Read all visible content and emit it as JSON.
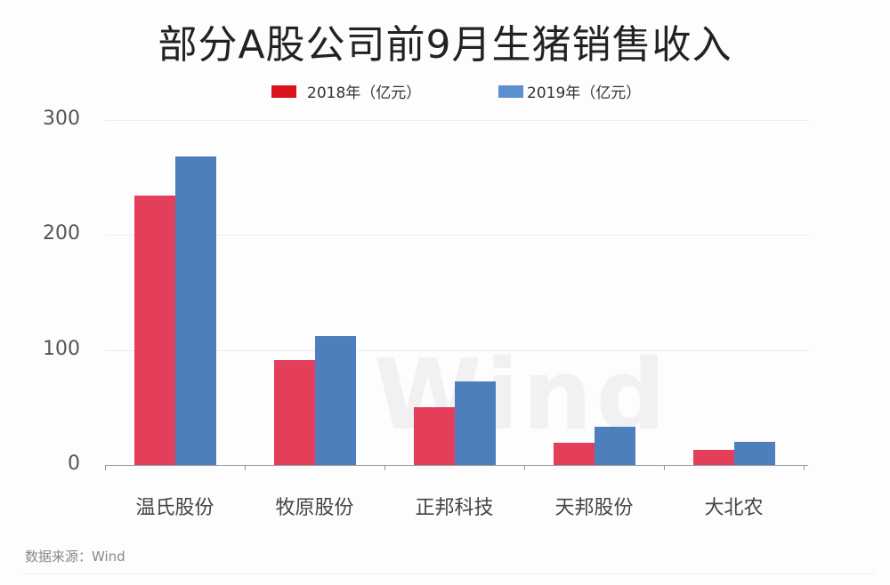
{
  "chart_data": {
    "type": "bar",
    "title": "部分A股公司前9月生猪销售收入",
    "categories": [
      "温氏股份",
      "牧原股份",
      "正邦科技",
      "天邦股份",
      "大北农"
    ],
    "series": [
      {
        "name": "2018年（亿元）",
        "color": "#e43f5a",
        "values": [
          234,
          91,
          50,
          19,
          13
        ]
      },
      {
        "name": "2019年（亿元）",
        "color": "#4d7fbd",
        "values": [
          268,
          112,
          73,
          33,
          20
        ]
      }
    ],
    "xlabel": "",
    "ylabel": "",
    "ylim": [
      0,
      300
    ],
    "yticks": [
      "0",
      "100",
      "200",
      "300"
    ],
    "grid": true,
    "legend_position": "top",
    "watermark": "Wind"
  },
  "source": "数据来源：Wind"
}
